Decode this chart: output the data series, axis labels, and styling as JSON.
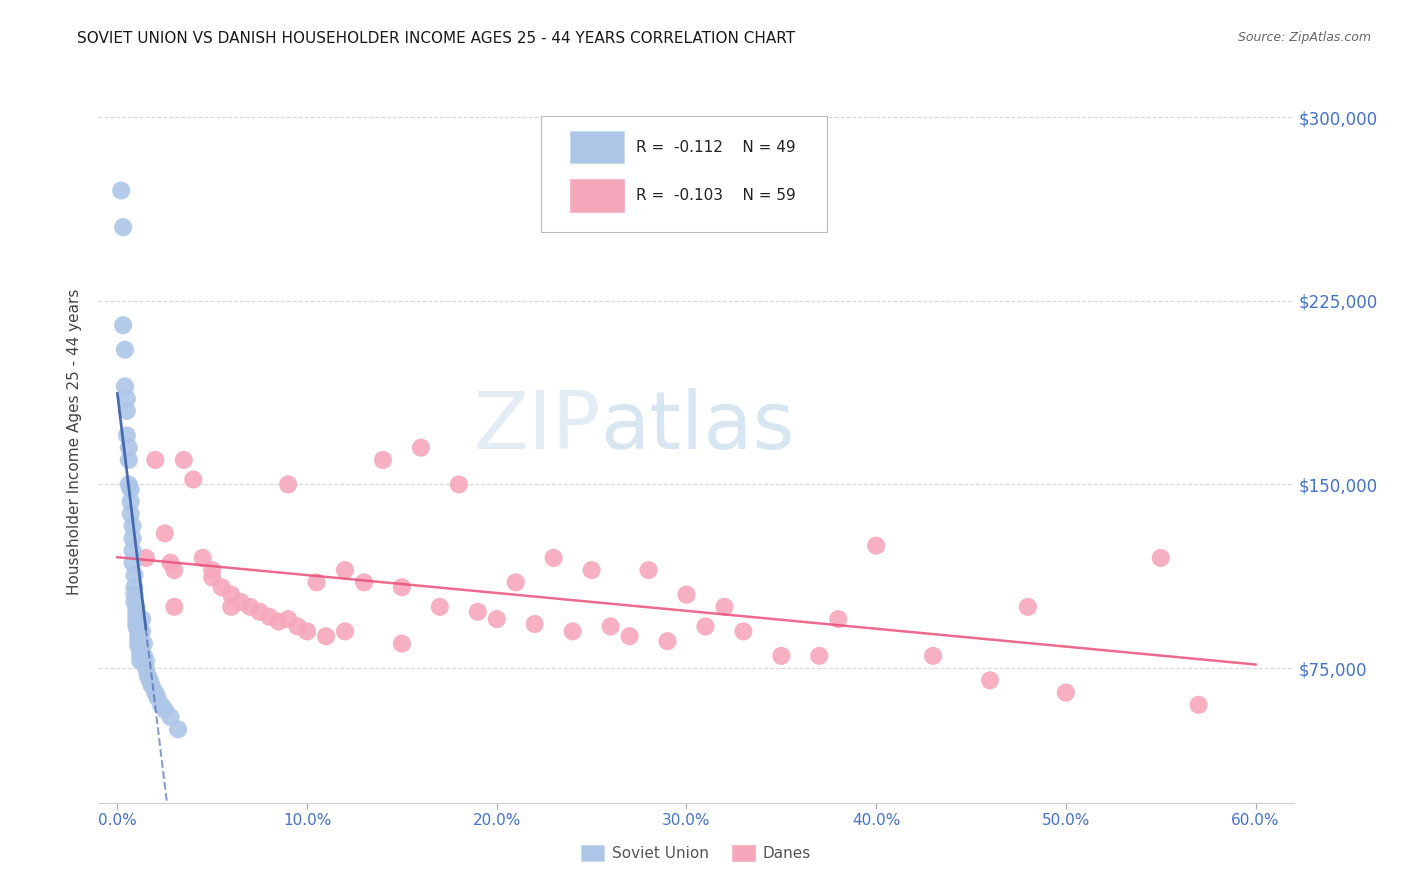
{
  "title": "SOVIET UNION VS DANISH HOUSEHOLDER INCOME AGES 25 - 44 YEARS CORRELATION CHART",
  "source": "Source: ZipAtlas.com",
  "ylabel": "Householder Income Ages 25 - 44 years",
  "xlabel_ticks": [
    "0.0%",
    "10.0%",
    "20.0%",
    "30.0%",
    "40.0%",
    "50.0%",
    "60.0%"
  ],
  "xlabel_vals": [
    0,
    10,
    20,
    30,
    40,
    50,
    60
  ],
  "ylabel_ticks": [
    "$75,000",
    "$150,000",
    "$225,000",
    "$300,000"
  ],
  "ylabel_vals": [
    75000,
    150000,
    225000,
    300000
  ],
  "xlim": [
    -1.0,
    62
  ],
  "ylim": [
    20000,
    315000
  ],
  "soviet_x": [
    0.2,
    0.3,
    0.3,
    0.4,
    0.4,
    0.5,
    0.5,
    0.5,
    0.6,
    0.6,
    0.6,
    0.7,
    0.7,
    0.7,
    0.8,
    0.8,
    0.8,
    0.8,
    0.9,
    0.9,
    0.9,
    0.9,
    1.0,
    1.0,
    1.0,
    1.0,
    1.0,
    1.1,
    1.1,
    1.1,
    1.1,
    1.2,
    1.2,
    1.2,
    1.3,
    1.3,
    1.4,
    1.4,
    1.5,
    1.5,
    1.6,
    1.7,
    1.8,
    2.0,
    2.1,
    2.3,
    2.5,
    2.8,
    3.2
  ],
  "soviet_y": [
    270000,
    255000,
    215000,
    205000,
    190000,
    185000,
    180000,
    170000,
    165000,
    160000,
    150000,
    148000,
    143000,
    138000,
    133000,
    128000,
    123000,
    118000,
    113000,
    108000,
    105000,
    102000,
    100000,
    98000,
    96000,
    94000,
    92000,
    90000,
    88000,
    86000,
    84000,
    82000,
    80000,
    78000,
    95000,
    90000,
    85000,
    80000,
    78000,
    75000,
    72000,
    70000,
    68000,
    65000,
    63000,
    60000,
    58000,
    55000,
    50000
  ],
  "danes_x": [
    1.5,
    2.0,
    2.5,
    2.8,
    3.0,
    3.5,
    4.0,
    4.5,
    5.0,
    5.0,
    5.5,
    6.0,
    6.5,
    7.0,
    7.5,
    8.0,
    8.5,
    9.0,
    9.5,
    10.0,
    10.5,
    11.0,
    12.0,
    13.0,
    14.0,
    15.0,
    16.0,
    17.0,
    18.0,
    19.0,
    20.0,
    21.0,
    22.0,
    23.0,
    24.0,
    25.0,
    26.0,
    27.0,
    28.0,
    29.0,
    30.0,
    31.0,
    32.0,
    33.0,
    35.0,
    37.0,
    38.0,
    40.0,
    43.0,
    46.0,
    48.0,
    50.0,
    55.0,
    57.0,
    3.0,
    6.0,
    9.0,
    12.0,
    15.0
  ],
  "danes_y": [
    120000,
    160000,
    130000,
    118000,
    115000,
    160000,
    152000,
    120000,
    115000,
    112000,
    108000,
    105000,
    102000,
    100000,
    98000,
    96000,
    94000,
    150000,
    92000,
    90000,
    110000,
    88000,
    115000,
    110000,
    160000,
    108000,
    165000,
    100000,
    150000,
    98000,
    95000,
    110000,
    93000,
    120000,
    90000,
    115000,
    92000,
    88000,
    115000,
    86000,
    105000,
    92000,
    100000,
    90000,
    80000,
    80000,
    95000,
    125000,
    80000,
    70000,
    100000,
    65000,
    120000,
    60000,
    100000,
    100000,
    95000,
    90000,
    85000
  ],
  "soviet_color": "#adc6e8",
  "danes_color": "#f5a8bb",
  "soviet_line_color": "#3a5fa8",
  "danes_line_color": "#e8507a",
  "watermark_zip": "ZIP",
  "watermark_atlas": "atlas",
  "background_color": "#ffffff",
  "grid_color": "#d0d0d0",
  "axis_color": "#4472c4",
  "title_color": "#1a1a1a",
  "source_color": "#666666"
}
